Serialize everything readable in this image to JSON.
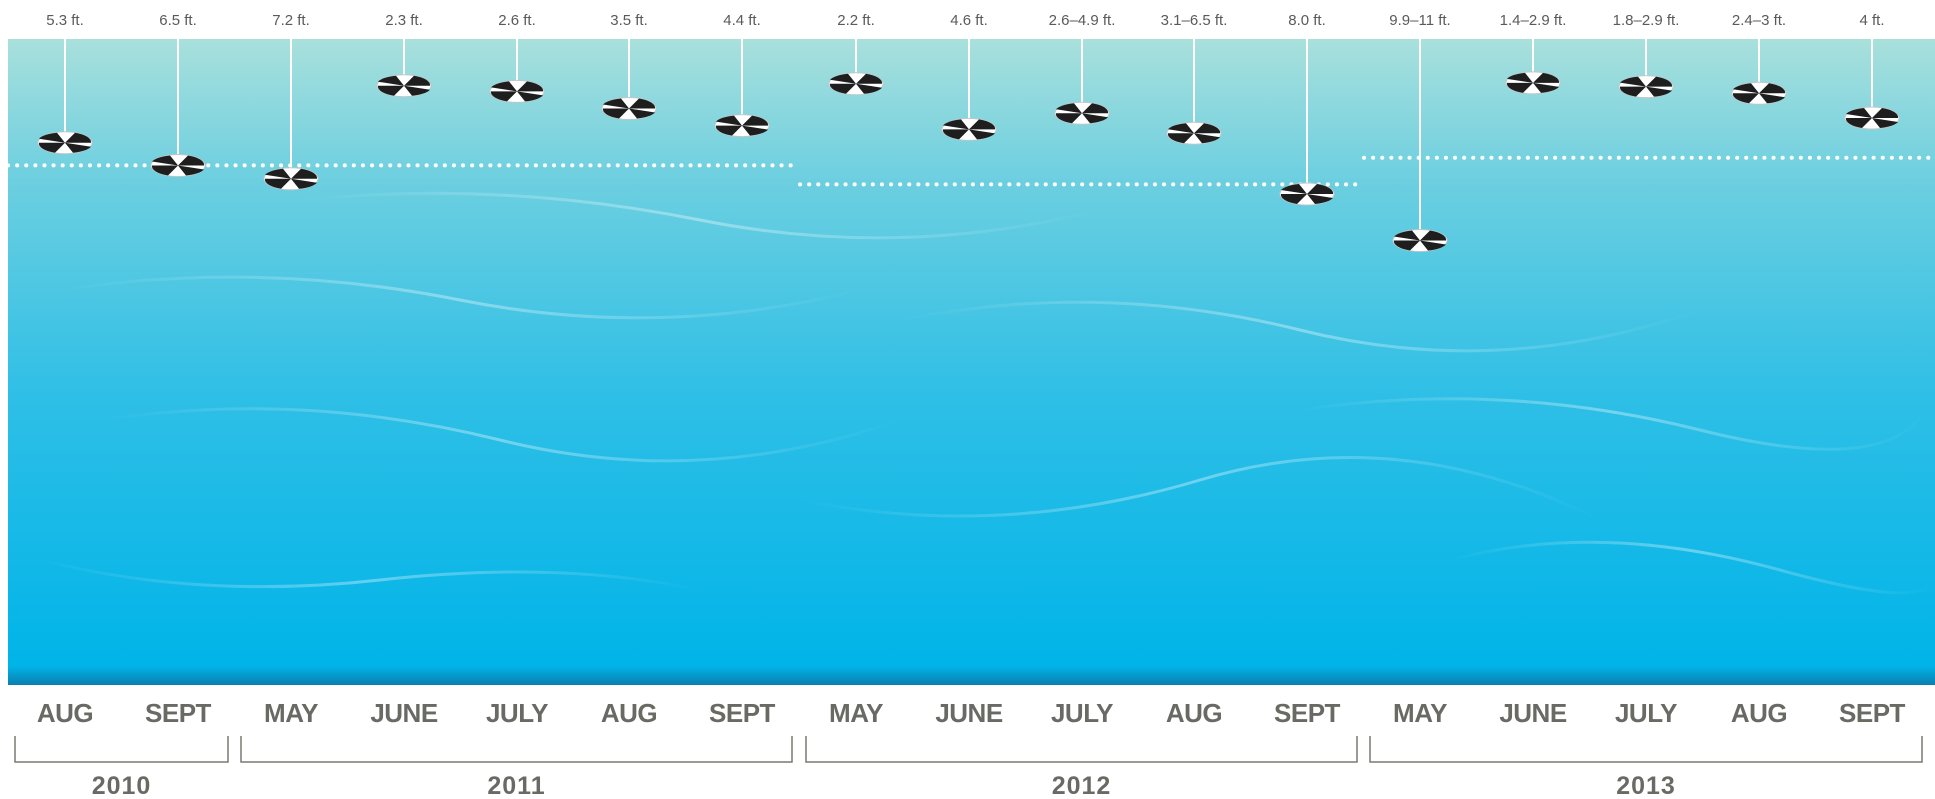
{
  "chart_data": {
    "type": "scatter",
    "description_units": "ft.",
    "y_axis_inverted": true,
    "ylim": [
      0,
      20
    ],
    "points": [
      {
        "month": "AUG",
        "year": "2010",
        "label": "5.3 ft.",
        "depth": 5.3
      },
      {
        "month": "SEPT",
        "year": "2010",
        "label": "6.5 ft.",
        "depth": 6.5
      },
      {
        "month": "MAY",
        "year": "2011",
        "label": "7.2 ft.",
        "depth": 7.2
      },
      {
        "month": "JUNE",
        "year": "2011",
        "label": "2.3 ft.",
        "depth": 2.3
      },
      {
        "month": "JULY",
        "year": "2011",
        "label": "2.6 ft.",
        "depth": 2.6
      },
      {
        "month": "AUG",
        "year": "2011",
        "label": "3.5 ft.",
        "depth": 3.5
      },
      {
        "month": "SEPT",
        "year": "2011",
        "label": "4.4 ft.",
        "depth": 4.4
      },
      {
        "month": "MAY",
        "year": "2012",
        "label": "2.2 ft.",
        "depth": 2.2
      },
      {
        "month": "JUNE",
        "year": "2012",
        "label": "4.6 ft.",
        "depth": 4.6
      },
      {
        "month": "JULY",
        "year": "2012",
        "label": "2.6–4.9 ft.",
        "depth": 3.75
      },
      {
        "month": "AUG",
        "year": "2012",
        "label": "3.1–6.5 ft.",
        "depth": 4.8
      },
      {
        "month": "SEPT",
        "year": "2012",
        "label": "8.0 ft.",
        "depth": 8.0
      },
      {
        "month": "MAY",
        "year": "2013",
        "label": "9.9–11 ft.",
        "depth": 10.45
      },
      {
        "month": "JUNE",
        "year": "2013",
        "label": "1.4–2.9 ft.",
        "depth": 2.15
      },
      {
        "month": "JULY",
        "year": "2013",
        "label": "1.8–2.9 ft.",
        "depth": 2.35
      },
      {
        "month": "AUG",
        "year": "2013",
        "label": "2.4–3 ft.",
        "depth": 2.7
      },
      {
        "month": "SEPT",
        "year": "2013",
        "label": "4 ft.",
        "depth": 4.0
      }
    ],
    "years": [
      {
        "label": "2010",
        "first": 0,
        "last": 1
      },
      {
        "label": "2011",
        "first": 2,
        "last": 6
      },
      {
        "label": "2012",
        "first": 7,
        "last": 11
      },
      {
        "label": "2013",
        "first": 12,
        "last": 16
      }
    ],
    "yearly_average_lines": [
      {
        "first": 0,
        "last": 6,
        "depth": 6.6
      },
      {
        "first": 7,
        "last": 11,
        "depth": 7.6
      },
      {
        "first": 12,
        "last": 16,
        "depth": 6.2
      }
    ],
    "colors": {
      "water_top": "#a9e0dc",
      "water_mid": "#4cc4e4",
      "water_bottom": "#00b2e6",
      "water_edge": "#0a7fb0",
      "disk_dark": "#1e1e1e",
      "disk_light": "#ffffff",
      "string": "#ffffff",
      "dotted_line": "#ffffff",
      "text": "#6a6a64"
    }
  }
}
